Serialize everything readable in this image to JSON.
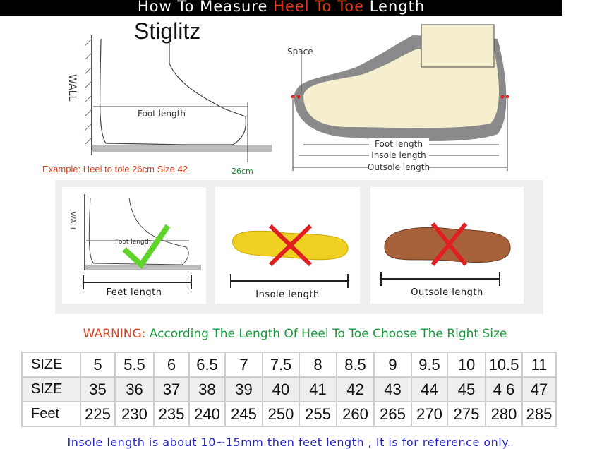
{
  "header": {
    "prefix": "How To Measure ",
    "highlight": "Heel To Toe",
    "suffix": " Length"
  },
  "brand": "Stiglitz",
  "diagram_left": {
    "wall": "WALL",
    "foot_length": "Foot length",
    "example": "Example: Heel to tole 26cm Size 42",
    "cm": "26cm"
  },
  "diagram_right": {
    "space": "Space",
    "foot_length": "Foot length",
    "insole_length": "Insole length",
    "outsole_length": "Outsole length"
  },
  "cards": [
    {
      "label": "Feet length",
      "wall": "WALL",
      "foot_length": "Foot length",
      "mark": "check"
    },
    {
      "label": "Insole length",
      "mark": "cross"
    },
    {
      "label": "Outsole length",
      "mark": "cross"
    }
  ],
  "colors": {
    "accent_red": "#e8391c",
    "check_green": "#5fd32a",
    "cross_red": "#e02020",
    "note_blue": "#2323c8"
  },
  "warning": {
    "prefix": "WARNING:",
    "text": "According The Length Of Heel To Toe Choose The Right Size"
  },
  "table": {
    "rows": [
      {
        "label": "SIZE",
        "values": [
          "5",
          "5.5",
          "6",
          "6.5",
          "7",
          "7.5",
          "8",
          "8.5",
          "9",
          "9.5",
          "10",
          "10.5",
          "11"
        ]
      },
      {
        "label": "SIZE",
        "values": [
          "35",
          "36",
          "37",
          "38",
          "39",
          "40",
          "41",
          "42",
          "43",
          "44",
          "45",
          "4 6",
          "47"
        ]
      },
      {
        "label": "Feet",
        "values": [
          "225",
          "230",
          "235",
          "240",
          "245",
          "250",
          "255",
          "260",
          "265",
          "270",
          "275",
          "280",
          "285"
        ]
      }
    ]
  },
  "note": "Insole length is about 10~15mm then feet length , It is for reference only."
}
